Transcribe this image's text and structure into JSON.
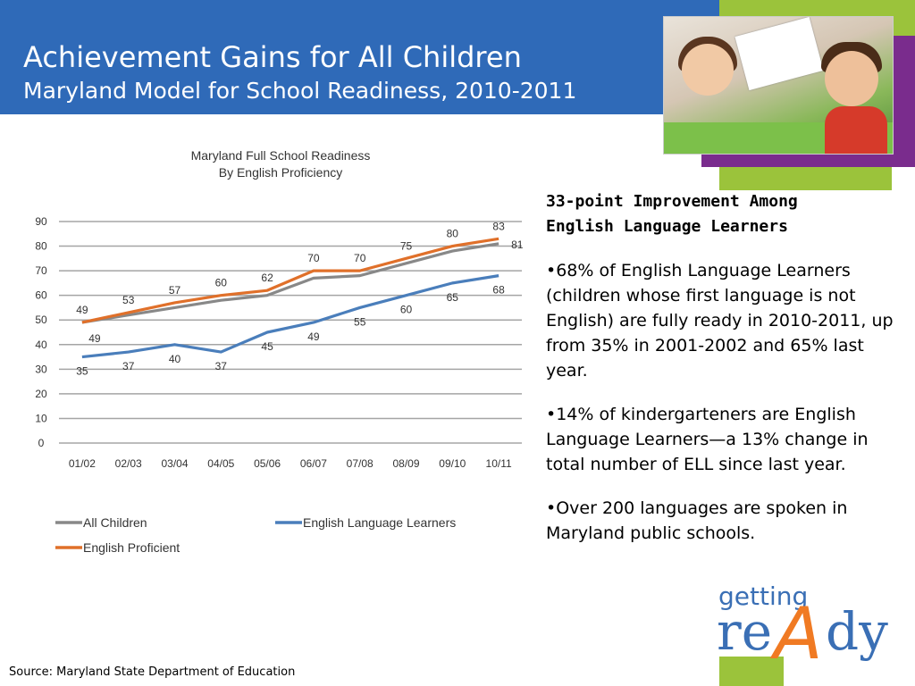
{
  "header": {
    "title": "Achievement Gains for All Children",
    "subtitle": "Maryland Model for School Readiness, 2010-2011"
  },
  "colors": {
    "header_bg": "#2f6ab8",
    "accent_green": "#9bc33b",
    "accent_purple": "#7a2c8d",
    "series_all": "#888888",
    "series_ell": "#4a7ebb",
    "series_ep": "#e0702a"
  },
  "chart_data": {
    "type": "line",
    "title": "Maryland Full School Readiness",
    "subtitle": "By English Proficiency",
    "categories": [
      "01/02",
      "02/03",
      "03/04",
      "04/05",
      "05/06",
      "06/07",
      "07/08",
      "08/09",
      "09/10",
      "10/11"
    ],
    "y_ticks": [
      "0",
      "10",
      "20",
      "30",
      "40",
      "50",
      "60",
      "70",
      "80",
      "90"
    ],
    "ylim": [
      0,
      90
    ],
    "grid": true,
    "legend_position": "bottom",
    "series": [
      {
        "name": "All Children",
        "color": "#888888",
        "values": [
          49,
          52,
          55,
          58,
          60,
          67,
          68,
          73,
          78,
          81
        ],
        "labels": {
          "9": "81"
        }
      },
      {
        "name": "English Language Learners",
        "color": "#4a7ebb",
        "values": [
          35,
          37,
          40,
          37,
          45,
          49,
          55,
          60,
          65,
          68
        ],
        "labels": {
          "0": "35",
          "1": "37",
          "2": "40",
          "3": "37",
          "4": "45",
          "5": "49",
          "6": "55",
          "7": "60",
          "8": "65",
          "9": "68"
        }
      },
      {
        "name": "English Proficient",
        "color": "#e0702a",
        "values": [
          49,
          53,
          57,
          60,
          62,
          70,
          70,
          75,
          80,
          83
        ],
        "labels": {
          "0": "49",
          "1": "53",
          "2": "57",
          "3": "60",
          "4": "62",
          "5": "70",
          "6": "70",
          "7": "75",
          "8": "80",
          "9": "83"
        }
      }
    ],
    "extra_labels": [
      {
        "series": 0,
        "index": 0,
        "text": "49"
      }
    ]
  },
  "panel": {
    "heading_line1": "33-point Improvement Among",
    "heading_line2": "English Language Learners",
    "bullets": [
      "•68% of English Language Learners (children whose first language is not English) are fully ready in 2010-2011, up from 35% in 2001-2002 and 65% last year.",
      "•14% of kindergarteners are English Language Learners—a 13% change in total number of ELL since last year.",
      "•Over 200 languages are spoken in Maryland public schools."
    ]
  },
  "source": "Source: Maryland State Department of Education",
  "logo": {
    "word1": "getting",
    "word2a": "re",
    "word2b": "A",
    "word2c": "dy"
  }
}
